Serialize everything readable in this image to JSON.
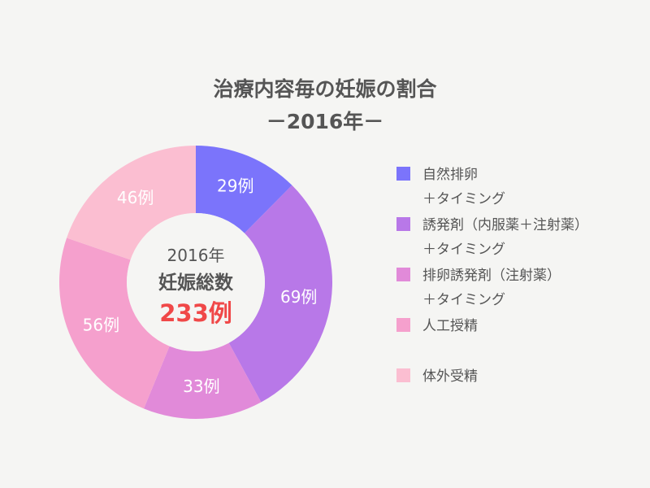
{
  "chart_data": {
    "type": "pie",
    "title": "治療内容毎の妊娠の割合",
    "subtitle": "－2016年－",
    "center": {
      "year": "2016年",
      "label": "妊娠総数",
      "total": "233例"
    },
    "categories": [
      "自然排卵＋タイミング",
      "誘発剤（内服薬＋注射薬）＋タイミング",
      "排卵誘発剤（注射薬）＋タイミング",
      "人工授精",
      "体外受精"
    ],
    "legend": [
      [
        "自然排卵",
        "＋タイミング"
      ],
      [
        "誘発剤（内服薬＋注射薬）",
        "＋タイミング"
      ],
      [
        "排卵誘発剤（注射薬）",
        "＋タイミング"
      ],
      [
        "人工授精"
      ],
      [
        "体外受精"
      ]
    ],
    "values": [
      29,
      69,
      33,
      56,
      46
    ],
    "labels": [
      "29例",
      "69例",
      "33例",
      "56例",
      "46例"
    ],
    "colors": [
      "#7b74fb",
      "#b878e8",
      "#e18ad9",
      "#f5a0cd",
      "#fbbed1"
    ],
    "legend_position": "right"
  },
  "center_total_color": "#f04848"
}
